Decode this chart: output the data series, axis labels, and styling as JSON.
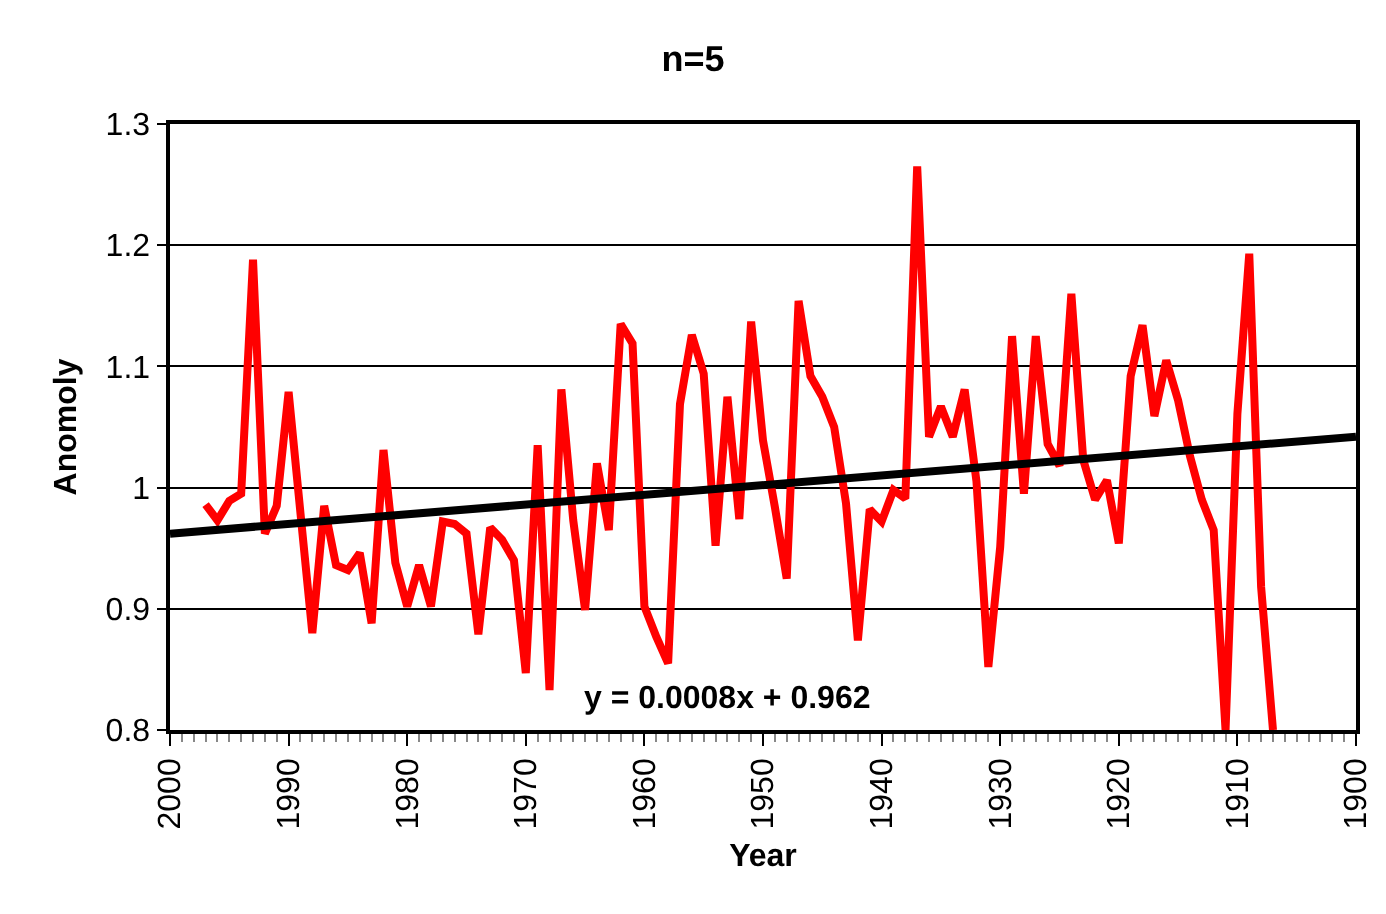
{
  "chart_data": {
    "type": "line",
    "title": "n=5",
    "xlabel": "Year",
    "ylabel": "Anomoly",
    "xlim": [
      2000,
      1900
    ],
    "xticks": [
      2000,
      1990,
      1980,
      1970,
      1960,
      1950,
      1940,
      1930,
      1920,
      1910,
      1900
    ],
    "ylim": [
      0.8,
      1.3
    ],
    "yticks": [
      {
        "value": 0.8,
        "label": "0.8"
      },
      {
        "value": 0.9,
        "label": "0.9"
      },
      {
        "value": 1,
        "label": "1"
      },
      {
        "value": 1.1,
        "label": "1.1"
      },
      {
        "value": 1.2,
        "label": "1.2"
      },
      {
        "value": 1.3,
        "label": "1.3"
      }
    ],
    "grid": "y",
    "marker": "none",
    "line_style": "solid",
    "annotations": [
      "y = 0.0008x + 0.962"
    ],
    "series": [
      {
        "color": "#ff0000",
        "x": [
          1997,
          1996,
          1995,
          1994,
          1993,
          1992,
          1991,
          1990,
          1989,
          1988,
          1987,
          1986,
          1985,
          1984,
          1983,
          1982,
          1981,
          1980,
          1979,
          1978,
          1977,
          1976,
          1975,
          1974,
          1973,
          1972,
          1971,
          1970,
          1969,
          1968,
          1967,
          1966,
          1965,
          1964,
          1963,
          1962,
          1961,
          1960,
          1959,
          1958,
          1957,
          1956,
          1955,
          1954,
          1953,
          1952,
          1951,
          1950,
          1949,
          1948,
          1947,
          1946,
          1945,
          1944,
          1943,
          1942,
          1941,
          1940,
          1939,
          1938,
          1937,
          1936,
          1935,
          1934,
          1933,
          1932,
          1931,
          1930,
          1929,
          1928,
          1927,
          1926,
          1925,
          1924,
          1923,
          1922,
          1921,
          1920,
          1919,
          1918,
          1917,
          1916,
          1915,
          1914,
          1913,
          1912,
          1911,
          1910,
          1909,
          1908,
          1907
        ],
        "values": [
          0.986,
          0.973,
          0.989,
          0.995,
          1.188,
          0.962,
          0.985,
          1.079,
          0.979,
          0.88,
          0.985,
          0.936,
          0.932,
          0.946,
          0.888,
          1.031,
          0.938,
          0.902,
          0.936,
          0.902,
          0.972,
          0.97,
          0.962,
          0.879,
          0.967,
          0.957,
          0.94,
          0.847,
          1.035,
          0.833,
          1.081,
          0.973,
          0.899,
          1.02,
          0.965,
          1.135,
          1.119,
          0.902,
          0.877,
          0.855,
          1.069,
          1.126,
          1.094,
          0.952,
          1.075,
          0.974,
          1.137,
          1.039,
          0.984,
          0.925,
          1.154,
          1.092,
          1.075,
          1.05,
          0.987,
          0.874,
          0.982,
          0.972,
          0.998,
          0.991,
          1.265,
          1.042,
          1.067,
          1.042,
          1.081,
          1.005,
          0.852,
          0.951,
          1.125,
          0.995,
          1.125,
          1.036,
          1.018,
          1.16,
          1.023,
          0.99,
          1.006,
          0.954,
          1.092,
          1.134,
          1.059,
          1.105,
          1.072,
          1.026,
          0.99,
          0.965,
          0.8,
          1.061,
          1.193,
          0.918,
          0.8
        ]
      },
      {
        "color": "#000000",
        "x": [
          2000,
          1900
        ],
        "values": [
          0.962,
          1.042
        ]
      }
    ]
  }
}
